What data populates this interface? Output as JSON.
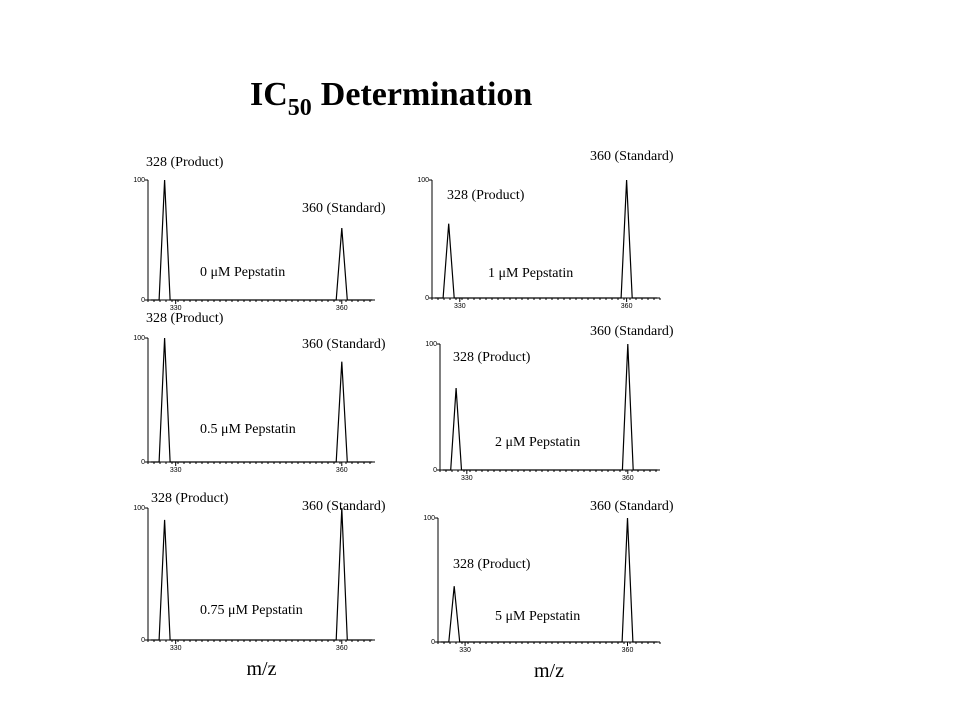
{
  "slide": {
    "title": [
      "IC",
      "50",
      "Determination"
    ]
  },
  "chart_data": [
    {
      "type": "line",
      "condition": "0 μM Pepstatin",
      "product_label": "328 (Product)",
      "standard_label": "360 (Standard)",
      "x": [
        325.5,
        327,
        328,
        329,
        359,
        360,
        361,
        365.5
      ],
      "values": [
        0,
        0,
        100,
        0,
        0,
        60,
        0,
        0
      ],
      "xlim": [
        325,
        366
      ],
      "ylim": [
        0,
        100
      ],
      "xticks": [
        330,
        360
      ],
      "yticks": [
        0,
        100
      ],
      "color": "#000000"
    },
    {
      "type": "line",
      "condition": "1 μM Pepstatin",
      "product_label": "328 (Product)",
      "standard_label": "360 (Standard)",
      "x": [
        325.5,
        327,
        328,
        329,
        359,
        360,
        361,
        365.5
      ],
      "values": [
        0,
        0,
        63,
        0,
        0,
        100,
        0,
        0
      ],
      "xlim": [
        325,
        366
      ],
      "ylim": [
        0,
        100
      ],
      "xticks": [
        330,
        360
      ],
      "yticks": [
        0,
        100
      ],
      "color": "#000000"
    },
    {
      "type": "line",
      "condition": "0.5  μM Pepstatin",
      "product_label": "328 (Product)",
      "standard_label": "360 (Standard)",
      "x": [
        325.5,
        327,
        328,
        329,
        359,
        360,
        361,
        365.5
      ],
      "values": [
        0,
        0,
        100,
        0,
        0,
        81,
        0,
        0
      ],
      "xlim": [
        325,
        366
      ],
      "ylim": [
        0,
        100
      ],
      "xticks": [
        330,
        360
      ],
      "yticks": [
        0,
        100
      ],
      "color": "#000000"
    },
    {
      "type": "line",
      "condition": "2  μM Pepstatin",
      "product_label": "328 (Product)",
      "standard_label": "360 (Standard)",
      "x": [
        325.5,
        327,
        328,
        329,
        359,
        360,
        361,
        365.5
      ],
      "values": [
        0,
        0,
        65,
        0,
        0,
        100,
        0,
        0
      ],
      "xlim": [
        325,
        366
      ],
      "ylim": [
        0,
        100
      ],
      "xticks": [
        330,
        360
      ],
      "yticks": [
        0,
        100
      ],
      "color": "#000000"
    },
    {
      "type": "line",
      "condition": "0.75 μM Pepstatin",
      "product_label": "328 (Product)",
      "standard_label": "360 (Standard)",
      "x": [
        325.5,
        327,
        328,
        329,
        359,
        360,
        361,
        365.5
      ],
      "values": [
        0,
        0,
        91,
        0,
        0,
        100,
        0,
        0
      ],
      "xlim": [
        325,
        366
      ],
      "ylim": [
        0,
        100
      ],
      "xticks": [
        330,
        360
      ],
      "yticks": [
        0,
        100
      ],
      "color": "#000000",
      "xlabel": "m/z"
    },
    {
      "type": "line",
      "condition": "5 μM Pepstatin",
      "product_label": "328 (Product)",
      "standard_label": "360 (Standard)",
      "x": [
        325.5,
        327,
        328,
        329,
        359,
        360,
        361,
        365.5
      ],
      "values": [
        0,
        0,
        45,
        0,
        0,
        100,
        0,
        0
      ],
      "xlim": [
        325,
        366
      ],
      "ylim": [
        0,
        100
      ],
      "xticks": [
        330,
        360
      ],
      "yticks": [
        0,
        100
      ],
      "color": "#000000",
      "xlabel": "m/z"
    }
  ]
}
